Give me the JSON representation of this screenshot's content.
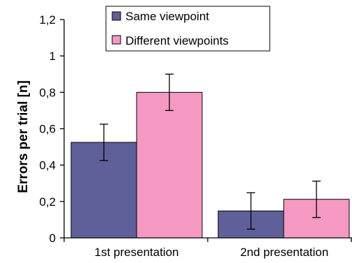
{
  "chart_data": {
    "type": "bar",
    "title": "",
    "xlabel": "",
    "ylabel": "Errors per trial [n]",
    "ylim": [
      0,
      1.2
    ],
    "yticks": [
      "0",
      "0,2",
      "0,4",
      "0,6",
      "0,8",
      "1",
      "1,2"
    ],
    "ytick_values": [
      0,
      0.2,
      0.4,
      0.6,
      0.8,
      1.0,
      1.2
    ],
    "categories": [
      "1st presentation",
      "2nd presentation"
    ],
    "series": [
      {
        "name": "Same viewpoint",
        "values": [
          0.525,
          0.148
        ],
        "errors": [
          0.1,
          0.1
        ],
        "color": "#5f5f99"
      },
      {
        "name": "Different viewpoints",
        "values": [
          0.8,
          0.212
        ],
        "errors": [
          0.1,
          0.1
        ],
        "color": "#f49ac2"
      }
    ],
    "grid": false,
    "legend": "top-center",
    "error_bars": true
  }
}
